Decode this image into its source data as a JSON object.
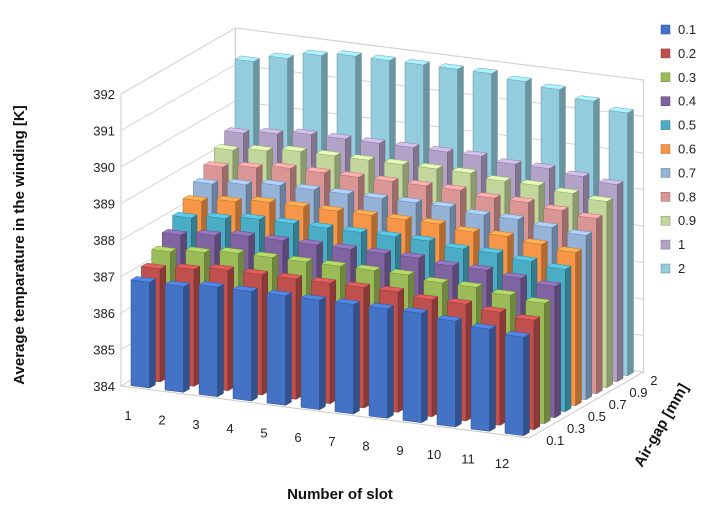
{
  "chart_data": {
    "type": "bar3d",
    "ylabel": "Average temparature in the winding [K]",
    "xlabel": "Number of slot",
    "zlabel": "Air-gap [mm]",
    "ylim": [
      384,
      392
    ],
    "y_ticks": [
      "384",
      "385",
      "386",
      "387",
      "388",
      "389",
      "390",
      "391",
      "392"
    ],
    "x_ticks": [
      "1",
      "2",
      "3",
      "4",
      "5",
      "6",
      "7",
      "8",
      "9",
      "10",
      "11",
      "12"
    ],
    "z_ticks": [
      "0.1",
      "0.3",
      "0.5",
      "0.7",
      "0.9",
      "2"
    ],
    "grid": true,
    "legend_position": "right",
    "categories": [
      "1",
      "2",
      "3",
      "4",
      "5",
      "6",
      "7",
      "8",
      "9",
      "10",
      "11",
      "12"
    ],
    "series": [
      {
        "name": "0.1",
        "color": "#4472C4",
        "values": [
          386.9,
          386.9,
          387.0,
          387.0,
          387.0,
          387.0,
          387.0,
          387.0,
          387.0,
          386.9,
          386.8,
          386.7
        ]
      },
      {
        "name": "0.2",
        "color": "#C0504D",
        "values": [
          387.1,
          387.2,
          387.3,
          387.3,
          387.3,
          387.3,
          387.3,
          387.3,
          387.2,
          387.2,
          387.1,
          387.0
        ]
      },
      {
        "name": "0.3",
        "color": "#9BBB59",
        "values": [
          387.4,
          387.5,
          387.6,
          387.6,
          387.6,
          387.6,
          387.6,
          387.6,
          387.5,
          387.5,
          387.4,
          387.3
        ]
      },
      {
        "name": "0.4",
        "color": "#8064A2",
        "values": [
          387.7,
          387.8,
          387.9,
          387.9,
          387.9,
          387.9,
          387.9,
          387.9,
          387.8,
          387.8,
          387.7,
          387.6
        ]
      },
      {
        "name": "0.5",
        "color": "#4BACC6",
        "values": [
          388.0,
          388.1,
          388.2,
          388.2,
          388.2,
          388.2,
          388.2,
          388.2,
          388.1,
          388.1,
          388.0,
          387.9
        ]
      },
      {
        "name": "0.6",
        "color": "#F79646",
        "values": [
          388.3,
          388.4,
          388.5,
          388.5,
          388.5,
          388.5,
          388.5,
          388.5,
          388.4,
          388.4,
          388.3,
          388.2
        ]
      },
      {
        "name": "0.7",
        "color": "#95B3D7",
        "values": [
          388.6,
          388.7,
          388.8,
          388.8,
          388.8,
          388.8,
          388.8,
          388.8,
          388.7,
          388.7,
          388.6,
          388.5
        ]
      },
      {
        "name": "0.8",
        "color": "#D99694",
        "values": [
          388.9,
          389.0,
          389.1,
          389.1,
          389.1,
          389.1,
          389.1,
          389.1,
          389.0,
          389.0,
          388.9,
          388.8
        ]
      },
      {
        "name": "0.9",
        "color": "#C3D69B",
        "values": [
          389.2,
          389.3,
          389.4,
          389.4,
          389.4,
          389.4,
          389.4,
          389.4,
          389.3,
          389.3,
          389.2,
          389.1
        ]
      },
      {
        "name": "1",
        "color": "#B3A2C7",
        "values": [
          389.5,
          389.6,
          389.7,
          389.7,
          389.7,
          389.7,
          389.7,
          389.7,
          389.6,
          389.6,
          389.5,
          389.4
        ]
      },
      {
        "name": "2",
        "color": "#93CDDD",
        "values": [
          391.3,
          391.5,
          391.7,
          391.8,
          391.8,
          391.8,
          391.8,
          391.8,
          391.7,
          391.6,
          391.4,
          391.2
        ]
      }
    ]
  }
}
